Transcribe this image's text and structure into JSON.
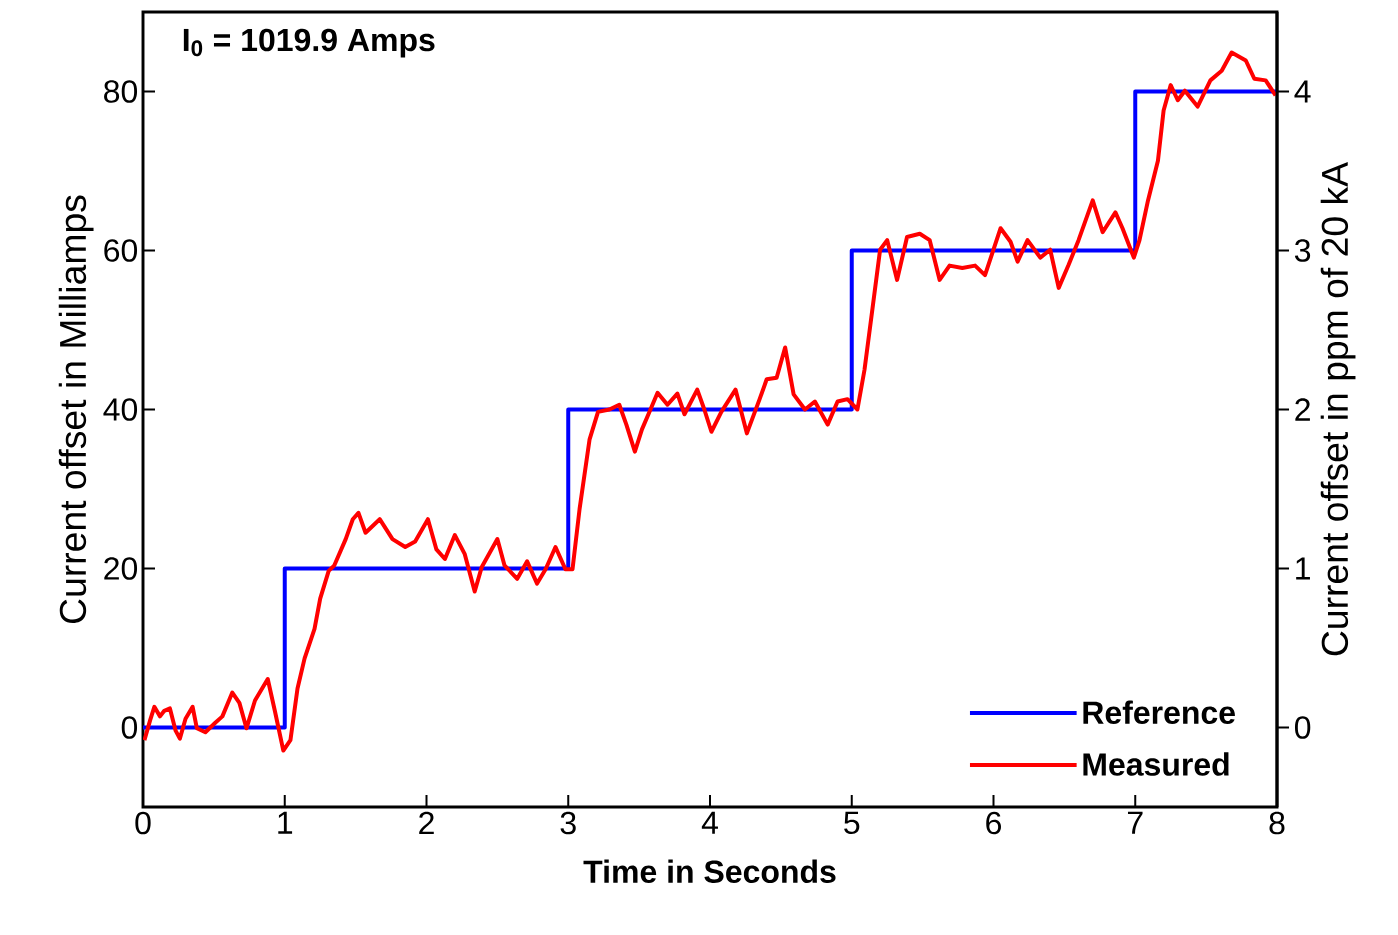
{
  "chart_data": {
    "type": "line",
    "xlabel": "Time in Seconds",
    "ylabel": "Current offset in Milliamps",
    "y2label": "Current offset in ppm of 20 kA",
    "annotations": [
      "I$_{0}$ = 1019.9 Amps"
    ],
    "xlim": [
      0,
      8
    ],
    "xticks": [
      0,
      1,
      2,
      3,
      4,
      5,
      6,
      7,
      8
    ],
    "ylim": [
      -10,
      90
    ],
    "yticks": [
      0,
      20,
      40,
      60,
      80
    ],
    "y2lim": [
      -0.5,
      4.5
    ],
    "y2ticks": [
      0,
      1,
      2,
      3,
      4
    ],
    "legend": "bottom right",
    "marker": "none",
    "series": [
      {
        "name": "Reference",
        "type": "step",
        "color": "#0000ff",
        "x": [
          0,
          1,
          3,
          5,
          7,
          8
        ],
        "values": [
          0,
          20,
          40,
          60,
          80,
          80
        ]
      },
      {
        "name": "Measured",
        "color": "#ff0000",
        "x": [
          0.01,
          0.05,
          0.08,
          0.12,
          0.15,
          0.19,
          0.23,
          0.26,
          0.3,
          0.35,
          0.38,
          0.44,
          0.51,
          0.56,
          0.63,
          0.68,
          0.73,
          0.79,
          0.88,
          0.93,
          0.99,
          1.04,
          1.09,
          1.14,
          1.21,
          1.25,
          1.31,
          1.35,
          1.43,
          1.48,
          1.52,
          1.57,
          1.67,
          1.76,
          1.85,
          1.92,
          2.01,
          2.07,
          2.13,
          2.2,
          2.27,
          2.34,
          2.39,
          2.5,
          2.55,
          2.64,
          2.71,
          2.78,
          2.84,
          2.91,
          2.98,
          3.03,
          3.08,
          3.15,
          3.21,
          3.29,
          3.36,
          3.41,
          3.47,
          3.52,
          3.58,
          3.63,
          3.7,
          3.77,
          3.82,
          3.91,
          3.96,
          4.01,
          4.08,
          4.18,
          4.26,
          4.35,
          4.4,
          4.47,
          4.53,
          4.59,
          4.67,
          4.74,
          4.83,
          4.9,
          4.97,
          5.04,
          5.09,
          5.15,
          5.2,
          5.25,
          5.32,
          5.39,
          5.48,
          5.55,
          5.62,
          5.69,
          5.78,
          5.87,
          5.94,
          6.05,
          6.12,
          6.17,
          6.24,
          6.33,
          6.4,
          6.46,
          6.53,
          6.6,
          6.7,
          6.77,
          6.86,
          6.91,
          6.99,
          7.03,
          7.09,
          7.16,
          7.2,
          7.25,
          7.3,
          7.35,
          7.44,
          7.53,
          7.61,
          7.68,
          7.78,
          7.84,
          7.92,
          7.99
        ],
        "values": [
          -1.6,
          0.9,
          2.6,
          1.4,
          2.1,
          2.4,
          -0.4,
          -1.4,
          1.1,
          2.6,
          -0.1,
          -0.6,
          0.6,
          1.4,
          4.4,
          3.1,
          -0.1,
          3.4,
          6.1,
          2.1,
          -2.9,
          -1.6,
          4.9,
          8.7,
          12.4,
          16.2,
          19.7,
          20.4,
          23.7,
          26.2,
          27,
          24.5,
          26.2,
          23.7,
          22.7,
          23.4,
          26.2,
          22.4,
          21.2,
          24.2,
          21.8,
          17.1,
          20.2,
          23.7,
          20.4,
          18.7,
          20.9,
          18.1,
          19.9,
          22.7,
          19.9,
          19.9,
          27.5,
          36.2,
          39.7,
          40,
          40.6,
          38.1,
          34.7,
          37.5,
          40,
          42.1,
          40.6,
          42,
          39.4,
          42.5,
          40,
          37.2,
          39.7,
          42.5,
          37,
          41.3,
          43.8,
          44,
          47.8,
          41.9,
          40,
          41,
          38.1,
          41,
          41.3,
          40,
          45,
          53.2,
          60.1,
          61.3,
          56.3,
          61.7,
          62.1,
          61.3,
          56.3,
          58.1,
          57.8,
          58.1,
          56.9,
          62.8,
          61.1,
          58.6,
          61.3,
          59.1,
          60.1,
          55.3,
          58.2,
          61.3,
          66.3,
          62.3,
          64.8,
          62.8,
          59.1,
          61.3,
          66.3,
          71.3,
          77.6,
          80.8,
          78.9,
          80.1,
          78.1,
          81.4,
          82.6,
          84.9,
          83.9,
          81.6,
          81.4,
          79.5
        ]
      }
    ]
  }
}
